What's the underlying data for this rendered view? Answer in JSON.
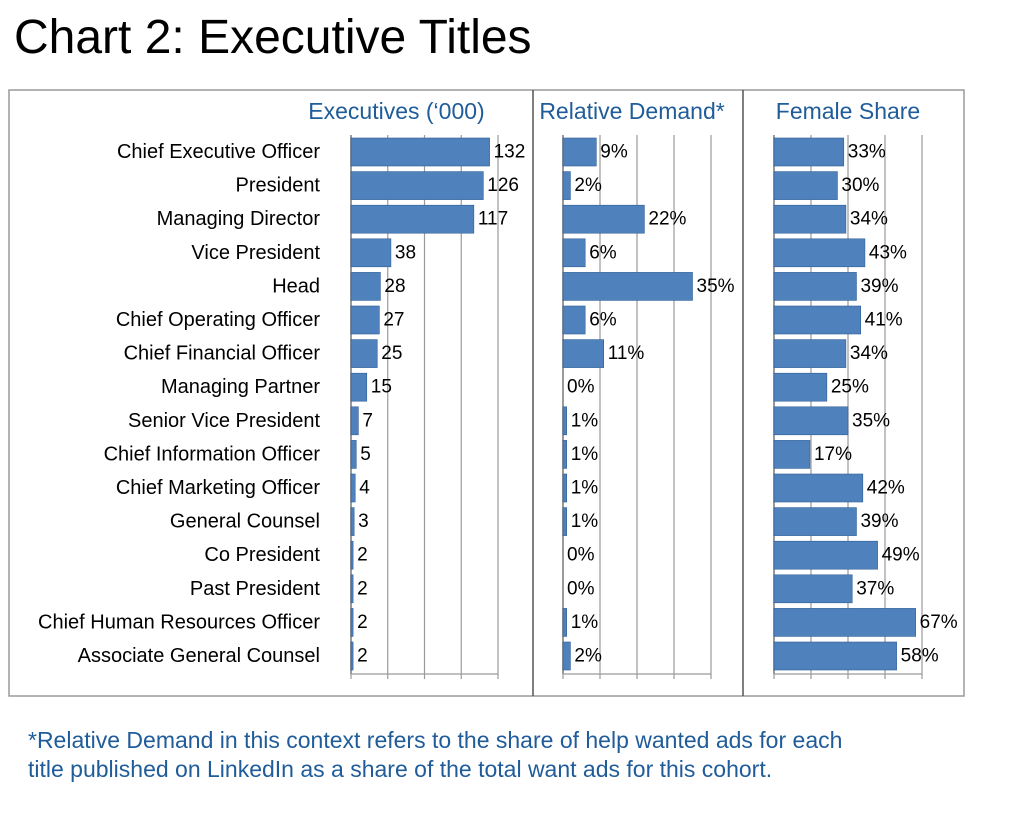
{
  "title": "Chart 2: Executive Titles",
  "colors": {
    "bar": "#4f81bd",
    "bar_stroke": "#2f5f97",
    "panel_title": "#1f5c99",
    "grid": "#9a9a9a",
    "frame": "#9a9a9a",
    "text": "#000000"
  },
  "chart_data": {
    "type": "bar",
    "orientation": "horizontal",
    "grid": true,
    "categories": [
      "Chief Executive Officer",
      "President",
      "Managing Director",
      "Vice President",
      "Head",
      "Chief Operating Officer",
      "Chief Financial Officer",
      "Managing Partner",
      "Senior Vice President",
      "Chief Information Officer",
      "Chief Marketing Officer",
      "General Counsel",
      "Co President",
      "Past President",
      "Chief Human Resources Officer",
      "Associate General Counsel"
    ],
    "panels": [
      {
        "name": "Executives (‘000)",
        "values": [
          132,
          126,
          117,
          38,
          28,
          27,
          25,
          15,
          7,
          5,
          4,
          3,
          2,
          2,
          2,
          2
        ],
        "labels": [
          "132",
          "126",
          "117",
          "38",
          "28",
          "27",
          "25",
          "15",
          "7",
          "5",
          "4",
          "3",
          "2",
          "2",
          "2",
          "2"
        ],
        "xlim": [
          0,
          140
        ]
      },
      {
        "name": "Relative Demand*",
        "values": [
          9,
          2,
          22,
          6,
          35,
          6,
          11,
          0,
          1,
          1,
          1,
          1,
          0,
          0,
          1,
          2
        ],
        "labels": [
          "9%",
          "2%",
          "22%",
          "6%",
          "35%",
          "6%",
          "11%",
          "0%",
          "1%",
          "1%",
          "1%",
          "1%",
          "0%",
          "0%",
          "1%",
          "2%"
        ],
        "xlim": [
          0,
          40
        ]
      },
      {
        "name": "Female Share",
        "values": [
          33,
          30,
          34,
          43,
          39,
          41,
          34,
          25,
          35,
          17,
          42,
          39,
          49,
          37,
          67,
          58
        ],
        "labels": [
          "33%",
          "30%",
          "34%",
          "43%",
          "39%",
          "41%",
          "34%",
          "25%",
          "35%",
          "17%",
          "42%",
          "39%",
          "49%",
          "37%",
          "67%",
          "58%"
        ],
        "xlim": [
          0,
          70
        ]
      }
    ]
  },
  "footnote": {
    "line1": "*Relative Demand in this context refers to the share of help wanted ads for each",
    "line2": "title published on LinkedIn as a share of the total want ads for this cohort."
  }
}
